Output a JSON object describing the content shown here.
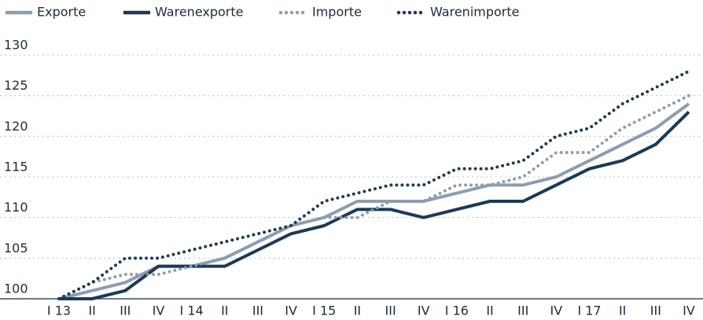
{
  "chart_data": {
    "type": "line",
    "categories": [
      "I 13",
      "II",
      "III",
      "IV",
      "I 14",
      "II",
      "III",
      "IV",
      "I 15",
      "II",
      "III",
      "IV",
      "I 16",
      "II",
      "III",
      "IV",
      "I 17",
      "II",
      "III",
      "IV"
    ],
    "series": [
      {
        "name": "Exporte",
        "color": "#8d9db0",
        "style": "solid",
        "values": [
          100,
          101,
          102,
          104,
          104,
          105,
          107,
          109,
          110,
          112,
          112,
          112,
          113,
          114,
          114,
          115,
          117,
          119,
          121,
          124
        ]
      },
      {
        "name": "Warenexporte",
        "color": "#1b3a57",
        "style": "solid",
        "values": [
          100,
          100,
          101,
          104,
          104,
          104,
          106,
          108,
          109,
          111,
          111,
          110,
          111,
          112,
          112,
          114,
          116,
          117,
          119,
          123
        ]
      },
      {
        "name": "Importe",
        "color": "#8d9db0",
        "style": "dotted",
        "values": [
          100,
          102,
          103,
          103,
          104,
          105,
          107,
          109,
          110,
          110,
          112,
          112,
          114,
          114,
          115,
          118,
          118,
          121,
          123,
          125
        ]
      },
      {
        "name": "Warenimporte",
        "color": "#1b3a57",
        "style": "dotted",
        "values": [
          100,
          102,
          105,
          105,
          106,
          107,
          108,
          109,
          112,
          113,
          114,
          114,
          116,
          116,
          117,
          120,
          121,
          124,
          126,
          128
        ]
      }
    ],
    "ylim": [
      100,
      130
    ],
    "yticks": [
      100,
      105,
      110,
      115,
      120,
      125,
      130
    ],
    "grid": true,
    "legend": "top"
  }
}
